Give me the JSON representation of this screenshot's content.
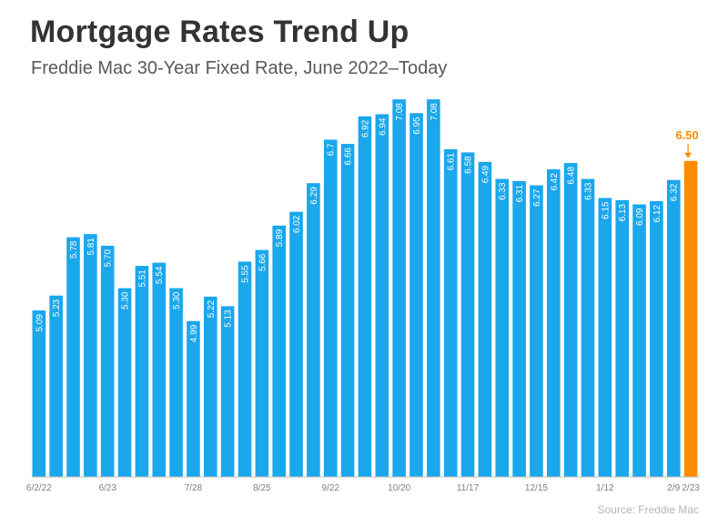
{
  "chart_data": {
    "type": "bar",
    "title": "Mortgage Rates Trend Up",
    "subtitle": "Freddie Mac 30-Year Fixed Rate, June 2022–Today",
    "source": "Source: Freddie Mac",
    "bar_color": "#1aa7ec",
    "highlight_color": "#ff8c00",
    "highlight_index": 38,
    "values": [
      5.09,
      5.23,
      5.78,
      5.81,
      5.7,
      5.3,
      5.51,
      5.54,
      5.3,
      4.99,
      5.22,
      5.13,
      5.55,
      5.66,
      5.89,
      6.02,
      6.29,
      6.7,
      6.66,
      6.92,
      6.94,
      7.08,
      6.95,
      7.08,
      6.61,
      6.58,
      6.49,
      6.33,
      6.31,
      6.27,
      6.42,
      6.48,
      6.33,
      6.15,
      6.13,
      6.09,
      6.12,
      6.32,
      6.5
    ],
    "value_labels": [
      "5.09",
      "5.23",
      "5.78",
      "5.81",
      "5.70",
      "5.30",
      "5.51",
      "5.54",
      "5.30",
      "4.99",
      "5.22",
      "5.13",
      "5.55",
      "5.66",
      "5.89",
      "6.02",
      "6.29",
      "6.7",
      "6.66",
      "6.92",
      "6.94",
      "7.08",
      "6.95",
      "7.08",
      "6.61",
      "6.58",
      "6.49",
      "6.33",
      "6.31",
      "6.27",
      "6.42",
      "6.48",
      "6.33",
      "6.15",
      "6.13",
      "6.09",
      "6.12",
      "6.32",
      "6.50"
    ],
    "x_ticks": [
      {
        "index": 0,
        "label": "6/2/22"
      },
      {
        "index": 4,
        "label": "6/23"
      },
      {
        "index": 9,
        "label": "7/28"
      },
      {
        "index": 13,
        "label": "8/25"
      },
      {
        "index": 17,
        "label": "9/22"
      },
      {
        "index": 21,
        "label": "10/20"
      },
      {
        "index": 25,
        "label": "11/17"
      },
      {
        "index": 29,
        "label": "12/15"
      },
      {
        "index": 33,
        "label": "1/12"
      },
      {
        "index": 37,
        "label": "2/9"
      },
      {
        "index": 38,
        "label": "2/23"
      }
    ],
    "grid": false,
    "legend": "none"
  }
}
